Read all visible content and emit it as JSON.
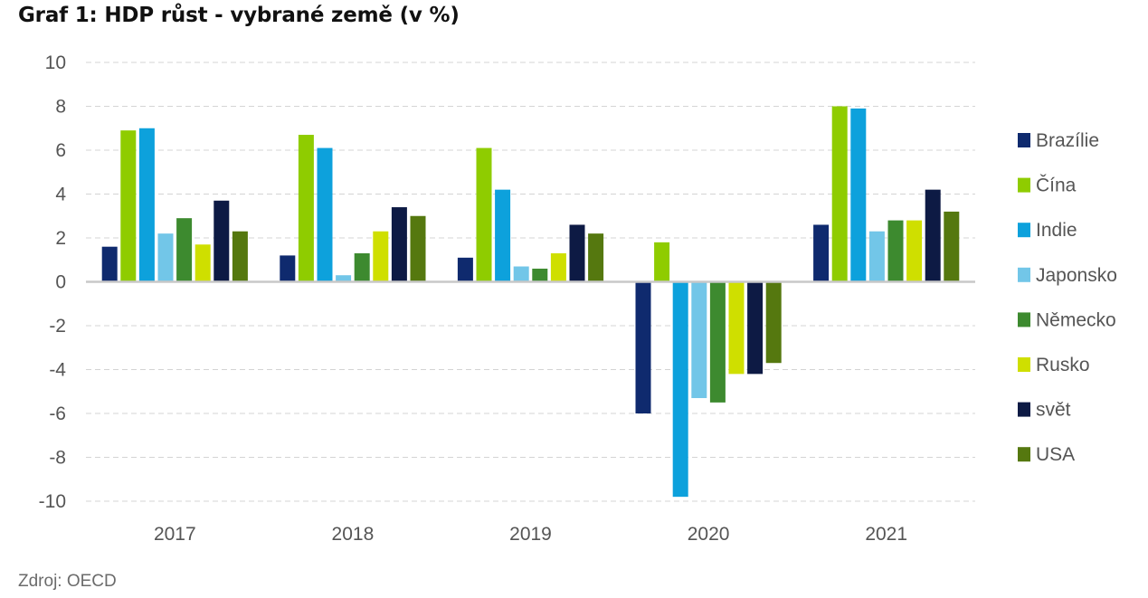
{
  "title": "Graf 1: HDP růst - vybrané země (v %)",
  "source": "Zdroj: OECD",
  "chart_data": {
    "type": "bar",
    "title": "Graf 1: HDP růst - vybrané země (v %)",
    "xlabel": "",
    "ylabel": "",
    "ylim": [
      -10,
      10
    ],
    "yticks": [
      10,
      8,
      6,
      4,
      2,
      0,
      -2,
      -4,
      -6,
      -8,
      -10
    ],
    "grid": true,
    "legend_position": "right",
    "categories": [
      "2017",
      "2018",
      "2019",
      "2020",
      "2021"
    ],
    "series": [
      {
        "name": "Brazílie",
        "color": "#0f2a6e",
        "values": [
          1.6,
          1.2,
          1.1,
          -6.0,
          2.6
        ]
      },
      {
        "name": "Čína",
        "color": "#8fcc00",
        "values": [
          6.9,
          6.7,
          6.1,
          1.8,
          8.0
        ]
      },
      {
        "name": "Indie",
        "color": "#0da1dc",
        "values": [
          7.0,
          6.1,
          4.2,
          -9.8,
          7.9
        ]
      },
      {
        "name": "Japonsko",
        "color": "#72c6e8",
        "values": [
          2.2,
          0.3,
          0.7,
          -5.3,
          2.3
        ]
      },
      {
        "name": "Německo",
        "color": "#3d8a2f",
        "values": [
          2.9,
          1.3,
          0.6,
          -5.5,
          2.8
        ]
      },
      {
        "name": "Rusko",
        "color": "#cfdf00",
        "values": [
          1.7,
          2.3,
          1.3,
          -4.2,
          2.8
        ]
      },
      {
        "name": "svět",
        "color": "#0d1a44",
        "values": [
          3.7,
          3.4,
          2.6,
          -4.2,
          4.2
        ]
      },
      {
        "name": "USA",
        "color": "#55780f",
        "values": [
          2.3,
          3.0,
          2.2,
          -3.7,
          3.2
        ]
      }
    ]
  }
}
